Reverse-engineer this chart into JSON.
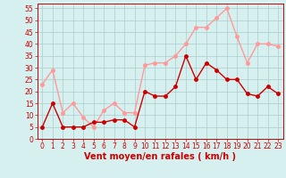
{
  "x": [
    0,
    1,
    2,
    3,
    4,
    5,
    6,
    7,
    8,
    9,
    10,
    11,
    12,
    13,
    14,
    15,
    16,
    17,
    18,
    19,
    20,
    21,
    22,
    23
  ],
  "wind_mean": [
    5,
    15,
    5,
    5,
    5,
    7,
    7,
    8,
    8,
    5,
    20,
    18,
    18,
    22,
    35,
    25,
    32,
    29,
    25,
    25,
    19,
    18,
    22,
    19
  ],
  "wind_gust": [
    23,
    29,
    11,
    15,
    9,
    5,
    12,
    15,
    11,
    11,
    31,
    32,
    32,
    35,
    40,
    47,
    47,
    51,
    55,
    43,
    32,
    40,
    40,
    39
  ],
  "mean_color": "#cc0000",
  "gust_color": "#ff9999",
  "background_color": "#d6f0f0",
  "grid_color": "#aacccc",
  "xlabel": "Vent moyen/en rafales ( km/h )",
  "ylim": [
    0,
    57
  ],
  "xlim": [
    -0.5,
    23.5
  ],
  "yticks": [
    0,
    5,
    10,
    15,
    20,
    25,
    30,
    35,
    40,
    45,
    50,
    55
  ],
  "xticks": [
    0,
    1,
    2,
    3,
    4,
    5,
    6,
    7,
    8,
    9,
    10,
    11,
    12,
    13,
    14,
    15,
    16,
    17,
    18,
    19,
    20,
    21,
    22,
    23
  ],
  "xlabel_fontsize": 7,
  "tick_fontsize": 5.5,
  "line_width": 1.0,
  "marker_size": 2.5
}
